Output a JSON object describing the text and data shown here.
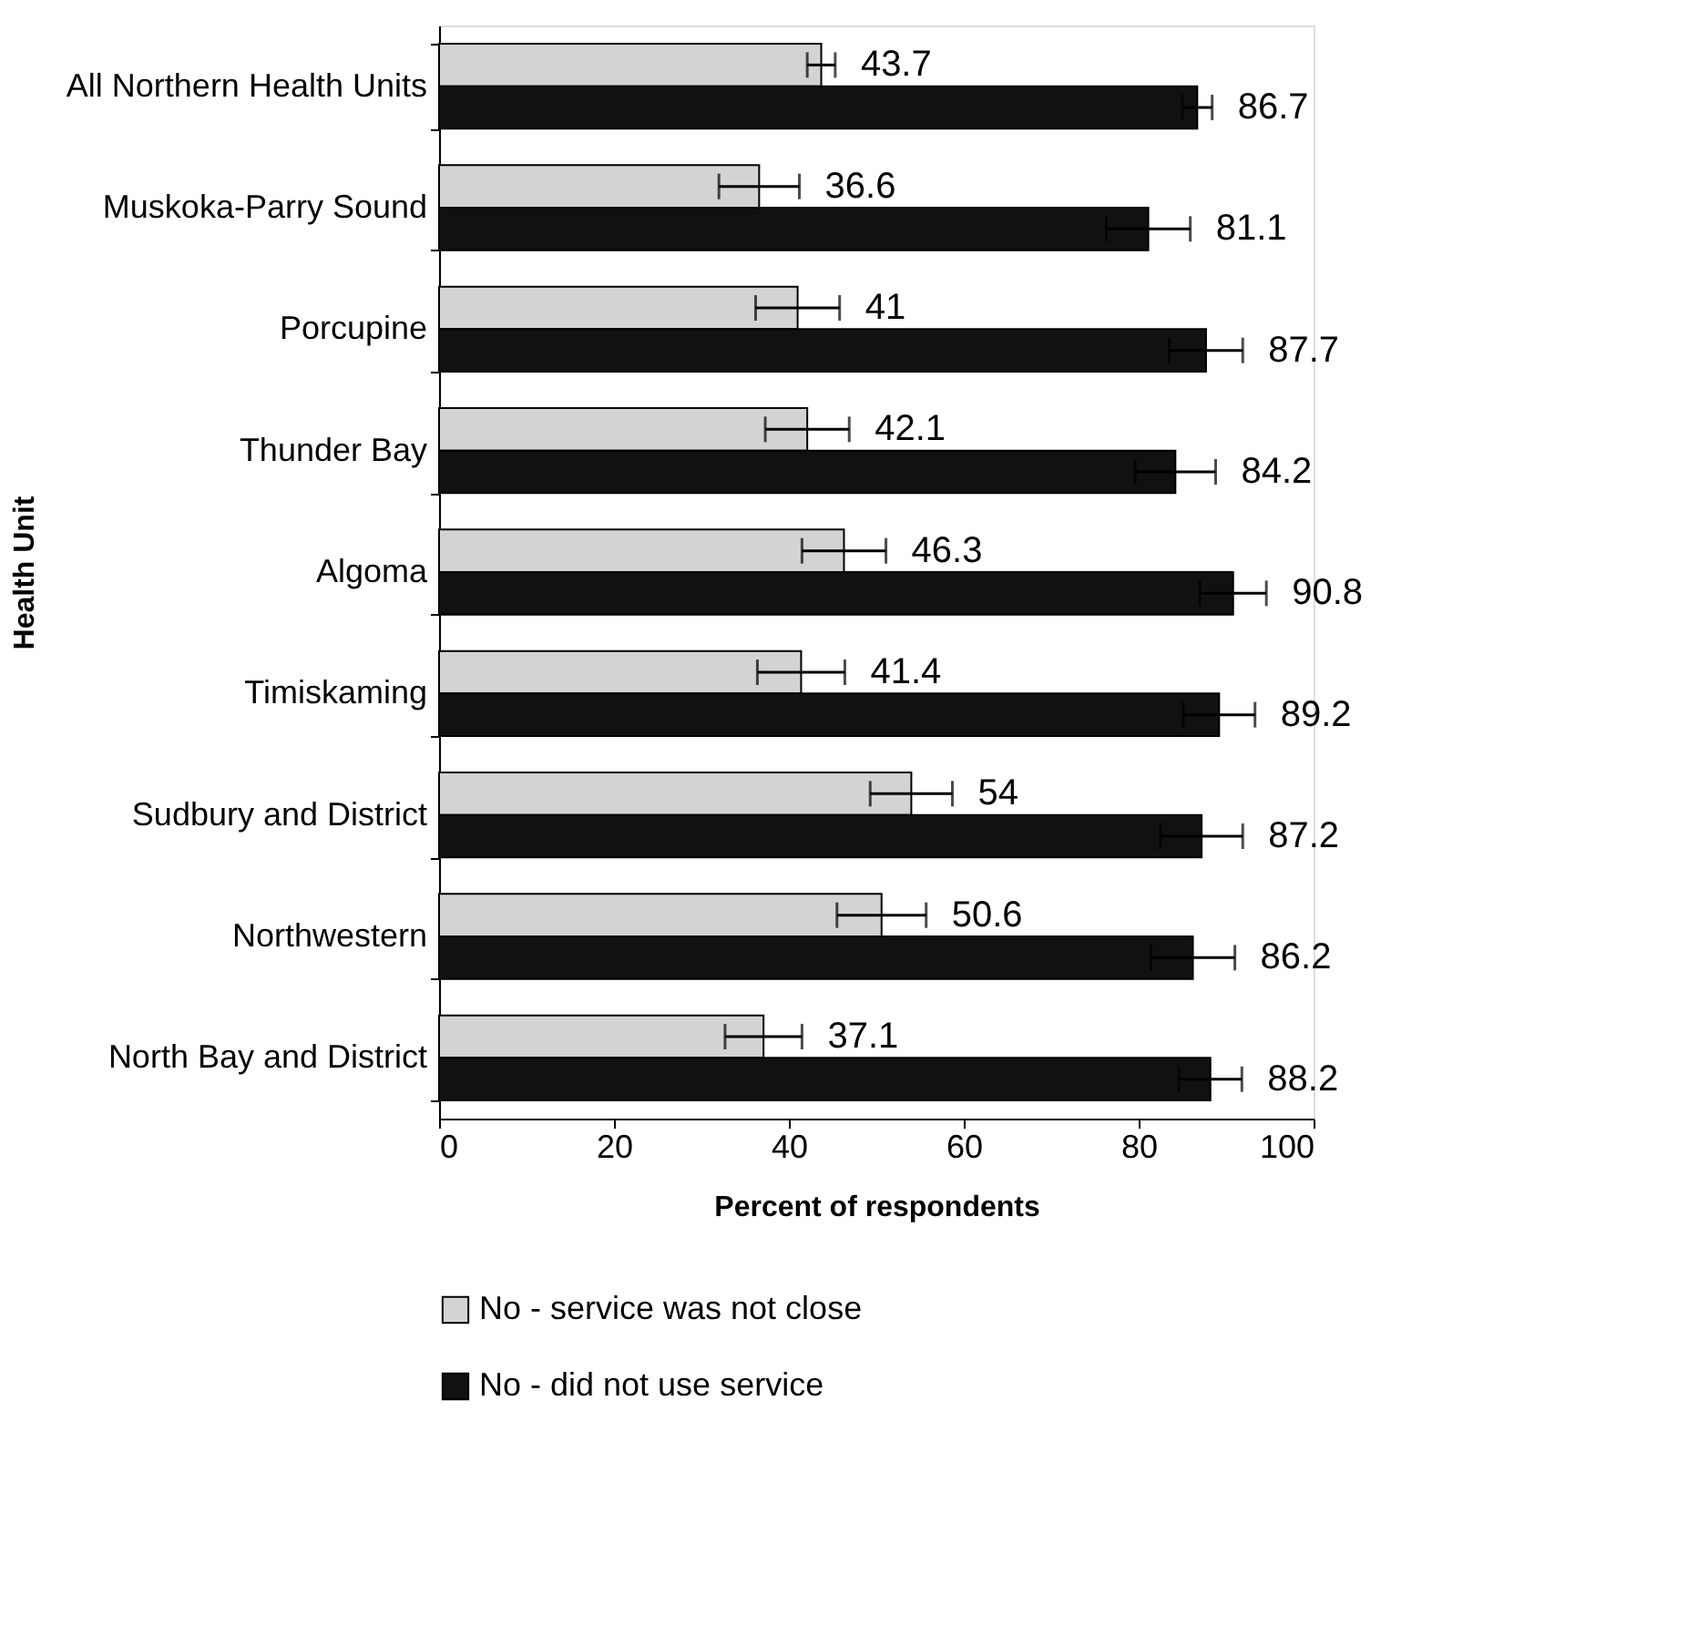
{
  "chart_data": {
    "type": "bar",
    "orientation": "horizontal",
    "xlabel": "Percent of respondents",
    "ylabel": "Health Unit",
    "categories": [
      "All Northern Health Units",
      "Muskoka-Parry Sound",
      "Porcupine",
      "Thunder Bay",
      "Algoma",
      "Timiskaming",
      "Sudbury and District",
      "Northwestern",
      "North Bay and District"
    ],
    "series": [
      {
        "name": "No - service was not close",
        "color": "#d3d3d3",
        "values": [
          43.7,
          36.6,
          41,
          42.1,
          46.3,
          41.4,
          54,
          50.6,
          37.1
        ],
        "errors": [
          1.6,
          4.6,
          4.8,
          4.8,
          4.8,
          5.0,
          4.7,
          5.1,
          4.4
        ]
      },
      {
        "name": "No - did not use service",
        "color": "#111111",
        "values": [
          86.7,
          81.1,
          87.7,
          84.2,
          90.8,
          89.2,
          87.2,
          86.2,
          88.2
        ],
        "errors": [
          1.7,
          4.8,
          4.2,
          4.6,
          3.8,
          4.1,
          4.7,
          4.8,
          3.6
        ]
      }
    ],
    "xlim": [
      0,
      100
    ],
    "xticks": [
      0,
      20,
      40,
      60,
      80,
      100
    ],
    "data_labels": true,
    "grid": false,
    "legend": "bottom left"
  }
}
